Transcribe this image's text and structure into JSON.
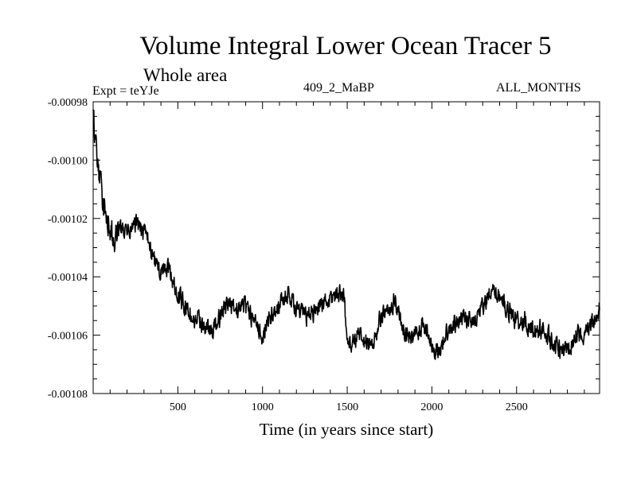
{
  "chart_data": {
    "type": "line",
    "title": "Volume Integral Lower Ocean Tracer 5",
    "subtitle": "Whole area",
    "experiment_label": "Expt = teYJe",
    "run_label": "409_2_MaBP",
    "months_label": "ALL_MONTHS",
    "xlabel": "Time (in years since start)",
    "ylabel": "",
    "xlim": [
      0,
      2990
    ],
    "ylim": [
      -0.00108,
      -0.00098
    ],
    "x_ticks": [
      500,
      1000,
      1500,
      2000,
      2500
    ],
    "x_tick_labels": [
      "500",
      "1000",
      "1500",
      "2000",
      "2500"
    ],
    "y_ticks": [
      -0.00098,
      -0.001,
      -0.00102,
      -0.00104,
      -0.00106,
      -0.00108
    ],
    "y_tick_labels": [
      "-0.00098",
      "-0.00100",
      "-0.00102",
      "-0.00104",
      "-0.00106",
      "-0.00108"
    ],
    "series": [
      {
        "name": "Volume integral",
        "color": "#000000",
        "x": [
          0,
          20,
          50,
          80,
          120,
          160,
          200,
          250,
          300,
          330,
          360,
          400,
          450,
          480,
          520,
          560,
          600,
          650,
          700,
          750,
          800,
          850,
          900,
          950,
          1000,
          1050,
          1100,
          1150,
          1200,
          1250,
          1300,
          1350,
          1400,
          1450,
          1480,
          1500,
          1520,
          1560,
          1600,
          1650,
          1700,
          1750,
          1780,
          1800,
          1850,
          1900,
          1950,
          2000,
          2050,
          2100,
          2150,
          2200,
          2250,
          2300,
          2350,
          2400,
          2450,
          2500,
          2550,
          2600,
          2650,
          2700,
          2750,
          2800,
          2850,
          2900,
          2950,
          2990
        ],
        "y": [
          -0.000985,
          -0.000998,
          -0.001012,
          -0.001018,
          -0.001028,
          -0.001024,
          -0.001025,
          -0.001022,
          -0.001025,
          -0.001028,
          -0.001035,
          -0.001038,
          -0.001038,
          -0.001043,
          -0.001048,
          -0.001052,
          -0.001055,
          -0.001056,
          -0.001059,
          -0.001054,
          -0.001049,
          -0.001051,
          -0.001049,
          -0.001056,
          -0.00106,
          -0.001053,
          -0.00105,
          -0.001046,
          -0.001051,
          -0.001054,
          -0.001052,
          -0.001049,
          -0.001048,
          -0.001045,
          -0.001046,
          -0.001062,
          -0.001063,
          -0.00106,
          -0.001062,
          -0.001063,
          -0.001054,
          -0.001052,
          -0.001047,
          -0.001052,
          -0.00106,
          -0.001061,
          -0.001056,
          -0.001064,
          -0.001065,
          -0.001057,
          -0.001056,
          -0.001054,
          -0.001055,
          -0.00105,
          -0.001046,
          -0.001047,
          -0.001051,
          -0.001055,
          -0.001055,
          -0.001059,
          -0.001058,
          -0.001061,
          -0.001065,
          -0.001066,
          -0.001059,
          -0.00106,
          -0.001056,
          -0.001052
        ]
      }
    ],
    "grid": false
  }
}
